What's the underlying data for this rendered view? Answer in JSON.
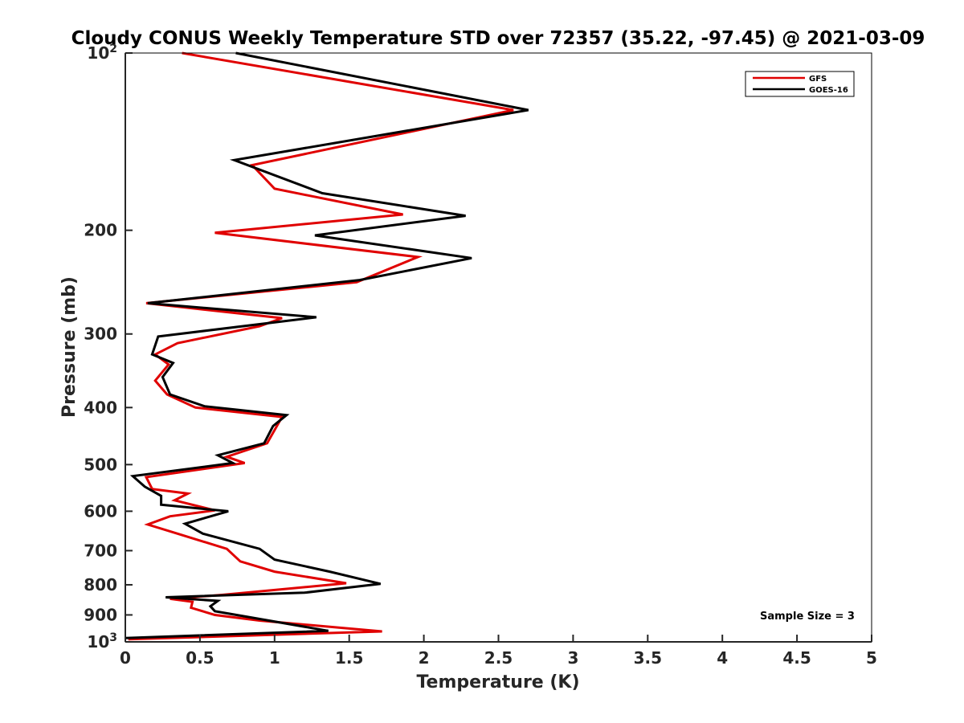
{
  "chart_data": {
    "type": "line",
    "title": "Cloudy CONUS Weekly Temperature STD over 72357 (35.22, -97.45) @ 2021-03-09",
    "xlabel": "Temperature (K)",
    "ylabel": "Pressure (mb)",
    "xlim": [
      0,
      5
    ],
    "ylim": [
      100,
      1000
    ],
    "y_scale": "log",
    "y_reversed": true,
    "grid": false,
    "legend_position": "top-right",
    "x_ticks": [
      {
        "value": 0,
        "label": "0"
      },
      {
        "value": 0.5,
        "label": "0.5"
      },
      {
        "value": 1,
        "label": "1"
      },
      {
        "value": 1.5,
        "label": "1.5"
      },
      {
        "value": 2,
        "label": "2"
      },
      {
        "value": 2.5,
        "label": "2.5"
      },
      {
        "value": 3,
        "label": "3"
      },
      {
        "value": 3.5,
        "label": "3.5"
      },
      {
        "value": 4,
        "label": "4"
      },
      {
        "value": 4.5,
        "label": "4.5"
      },
      {
        "value": 5,
        "label": "5"
      }
    ],
    "y_ticks": [
      {
        "value": 100,
        "label": "10",
        "sup": "2"
      },
      {
        "value": 200,
        "label": "200"
      },
      {
        "value": 300,
        "label": "300"
      },
      {
        "value": 400,
        "label": "400"
      },
      {
        "value": 500,
        "label": "500"
      },
      {
        "value": 600,
        "label": "600"
      },
      {
        "value": 700,
        "label": "700"
      },
      {
        "value": 800,
        "label": "800"
      },
      {
        "value": 900,
        "label": "900"
      },
      {
        "value": 1000,
        "label": "10",
        "sup": "3"
      }
    ],
    "annotation": "Sample Size = 3",
    "series": [
      {
        "name": "GFS",
        "color": "#e00000",
        "points": [
          [
            0.38,
            100
          ],
          [
            2.6,
            125
          ],
          [
            0.85,
            155
          ],
          [
            1.0,
            170
          ],
          [
            1.86,
            188
          ],
          [
            0.6,
            202
          ],
          [
            1.96,
            222
          ],
          [
            1.55,
            245
          ],
          [
            0.14,
            266
          ],
          [
            1.05,
            282
          ],
          [
            0.9,
            291
          ],
          [
            0.35,
            311
          ],
          [
            0.2,
            325
          ],
          [
            0.29,
            338
          ],
          [
            0.2,
            360
          ],
          [
            0.28,
            380
          ],
          [
            0.47,
            400
          ],
          [
            1.05,
            415
          ],
          [
            0.95,
            460
          ],
          [
            0.68,
            485
          ],
          [
            0.8,
            497
          ],
          [
            0.14,
            525
          ],
          [
            0.18,
            550
          ],
          [
            0.42,
            560
          ],
          [
            0.33,
            575
          ],
          [
            0.6,
            598
          ],
          [
            0.3,
            612
          ],
          [
            0.15,
            632
          ],
          [
            0.35,
            655
          ],
          [
            0.68,
            695
          ],
          [
            0.77,
            730
          ],
          [
            1.0,
            760
          ],
          [
            1.48,
            795
          ],
          [
            0.65,
            832
          ],
          [
            0.3,
            845
          ],
          [
            0.45,
            855
          ],
          [
            0.44,
            875
          ],
          [
            0.6,
            900
          ],
          [
            0.9,
            920
          ],
          [
            1.72,
            960
          ],
          [
            0.02,
            990
          ]
        ]
      },
      {
        "name": "GOES-16",
        "color": "#000000",
        "points": [
          [
            0.74,
            100
          ],
          [
            2.7,
            125
          ],
          [
            0.73,
            152
          ],
          [
            1.32,
            173
          ],
          [
            2.28,
            189
          ],
          [
            1.27,
            204
          ],
          [
            2.32,
            223
          ],
          [
            1.57,
            243
          ],
          [
            0.15,
            266
          ],
          [
            1.28,
            281
          ],
          [
            0.22,
            303
          ],
          [
            0.18,
            325
          ],
          [
            0.32,
            336
          ],
          [
            0.25,
            355
          ],
          [
            0.3,
            380
          ],
          [
            0.53,
            398
          ],
          [
            1.08,
            412
          ],
          [
            0.99,
            430
          ],
          [
            0.93,
            460
          ],
          [
            0.62,
            482
          ],
          [
            0.72,
            497
          ],
          [
            0.05,
            523
          ],
          [
            0.13,
            545
          ],
          [
            0.24,
            565
          ],
          [
            0.24,
            585
          ],
          [
            0.69,
            600
          ],
          [
            0.4,
            630
          ],
          [
            0.52,
            655
          ],
          [
            0.9,
            695
          ],
          [
            1.0,
            725
          ],
          [
            1.37,
            760
          ],
          [
            1.71,
            797
          ],
          [
            1.2,
            825
          ],
          [
            0.27,
            840
          ],
          [
            0.62,
            852
          ],
          [
            0.57,
            870
          ],
          [
            0.6,
            887
          ],
          [
            1.36,
            958
          ],
          [
            0.0,
            985
          ]
        ]
      }
    ]
  }
}
